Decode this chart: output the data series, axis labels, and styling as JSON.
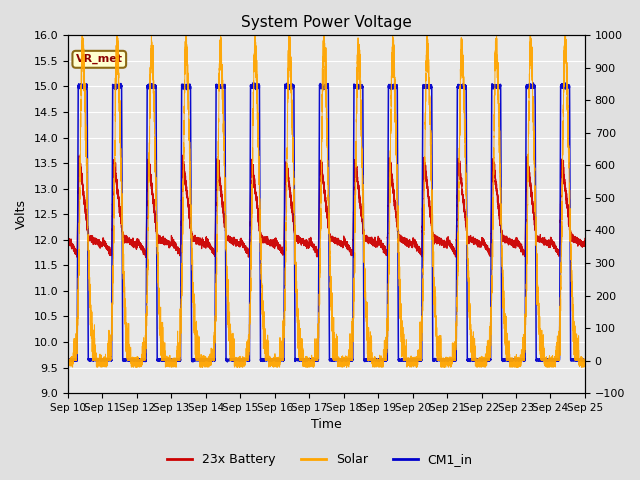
{
  "title": "System Power Voltage",
  "xlabel": "Time",
  "ylabel_left": "Volts",
  "ylim_left": [
    9.0,
    16.0
  ],
  "ylim_right": [
    -100,
    1000
  ],
  "x_tick_labels": [
    "Sep 10",
    "Sep 11",
    "Sep 12",
    "Sep 13",
    "Sep 14",
    "Sep 15",
    "Sep 16",
    "Sep 17",
    "Sep 18",
    "Sep 19",
    "Sep 20",
    "Sep 21",
    "Sep 22",
    "Sep 23",
    "Sep 24",
    "Sep 25"
  ],
  "color_battery": "#cc0000",
  "color_solar": "#ffa500",
  "color_cm1": "#0000cc",
  "legend_labels": [
    "23x Battery",
    "Solar",
    "CM1_in"
  ],
  "vr_met_label": "VR_met",
  "background_color": "#e0e0e0",
  "plot_bg_color": "#e8e8e8",
  "n_days": 15,
  "seed": 42
}
